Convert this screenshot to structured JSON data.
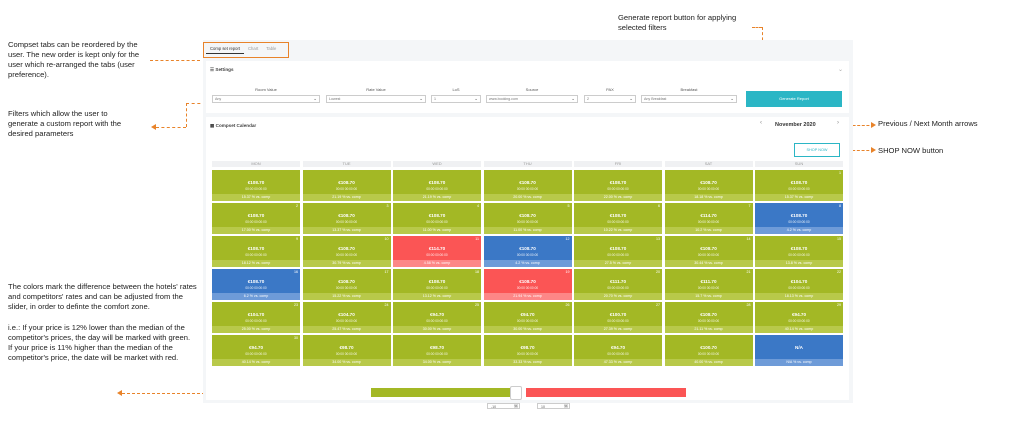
{
  "annotations": {
    "tabs": "Compset tabs can be reordered by the user. The new order is kept only for the user which re-arranged the tabs (user preference).",
    "filters": "Filters which allow the user to generate a custom report with the desired parameters",
    "colors": "The colors mark the difference between the hotels' rates and competitors' rates and can be adjusted from the slider, in order to definte the comfort zone.",
    "example": "i.e.: If your price is 12% lower than the median of the competitor's prices, the day will be marked with green. If your price is 11% higher than the median of the competitor's price, the date will be market with red.",
    "generate": "Generate report button for applying selected filters",
    "month_arrows": "Previous / Next Month arrows",
    "shop_now": "SHOP NOW button"
  },
  "tabs": [
    "Comp set report",
    "Chart",
    "Table"
  ],
  "settings": {
    "title": "Settings",
    "filters": [
      {
        "label": "Room Value",
        "value": "Any"
      },
      {
        "label": "Rate Value",
        "value": "Lowest"
      },
      {
        "label": "LoS",
        "value": "1"
      },
      {
        "label": "Source",
        "value": "www.booking.com"
      },
      {
        "label": "PAX",
        "value": "2"
      },
      {
        "label": "Breakfast",
        "value": "Any Breakfast"
      }
    ],
    "generate_label": "Generate Report"
  },
  "calendar": {
    "title": "Compset Calendar",
    "month": "November 2020",
    "prev": "‹",
    "next": "›",
    "shop_now": "SHOP NOW",
    "days": [
      "MON",
      "TUE",
      "WED",
      "THU",
      "FRI",
      "SAT",
      "SUN"
    ],
    "cells": [
      {
        "day": "",
        "price": "€108.70",
        "sub": "00:00 00:00:00",
        "pct": "15.37 % vs. comp",
        "color": "#a3b825"
      },
      {
        "day": "",
        "price": "€108.70",
        "sub": "00:00 00:00:00",
        "pct": "21.19 % vs. comp",
        "color": "#a3b825"
      },
      {
        "day": "",
        "price": "€108.70",
        "sub": "00:00 00:00:00",
        "pct": "21.19 % vs. comp",
        "color": "#a3b825"
      },
      {
        "day": "",
        "price": "€108.70",
        "sub": "00:00 00:00:00",
        "pct": "20.00 % vs. comp",
        "color": "#a3b825"
      },
      {
        "day": "",
        "price": "€108.70",
        "sub": "00:00 00:00:00",
        "pct": "22.00 % vs. comp",
        "color": "#a3b825"
      },
      {
        "day": "",
        "price": "€108.70",
        "sub": "00:00 00:00:00",
        "pct": "18.18 % vs. comp",
        "color": "#a3b825"
      },
      {
        "day": "1",
        "price": "€108.70",
        "sub": "00:00 00:00:00",
        "pct": "15.37 % vs. comp",
        "color": "#a3b825"
      },
      {
        "day": "2",
        "price": "€108.70",
        "sub": "00:00 00:00:00",
        "pct": "17.00 % vs. comp",
        "color": "#a3b825"
      },
      {
        "day": "3",
        "price": "€108.70",
        "sub": "00:00 00:00:00",
        "pct": "13.37 % vs. comp",
        "color": "#a3b825"
      },
      {
        "day": "4",
        "price": "€108.70",
        "sub": "00:00 00:00:00",
        "pct": "11.00 % vs. comp",
        "color": "#a3b825"
      },
      {
        "day": "5",
        "price": "€108.70",
        "sub": "00:00 00:00:00",
        "pct": "11.00 % vs. comp",
        "color": "#a3b825"
      },
      {
        "day": "6",
        "price": "€108.70",
        "sub": "00:00 00:00:00",
        "pct": "10.22 % vs. comp",
        "color": "#a3b825"
      },
      {
        "day": "7",
        "price": "€114.70",
        "sub": "00:00 00:00:00",
        "pct": "10.2 % vs. comp",
        "color": "#a3b825"
      },
      {
        "day": "8",
        "price": "€108.70",
        "sub": "00:00 00:00:00",
        "pct": "4.2 % vs. comp",
        "color": "#3b78c6"
      },
      {
        "day": "9",
        "price": "€108.70",
        "sub": "00:00 00:00:00",
        "pct": "18.12 % vs. comp",
        "color": "#a3b825"
      },
      {
        "day": "10",
        "price": "€108.70",
        "sub": "00:00 00:00:00",
        "pct": "30.79 % vs. comp",
        "color": "#a3b825"
      },
      {
        "day": "11",
        "price": "€114.70",
        "sub": "00:00 00:00:00",
        "pct": "4.58 % vs. comp",
        "color": "#fb5555"
      },
      {
        "day": "12",
        "price": "€108.70",
        "sub": "00:00 00:00:00",
        "pct": "4.2 % vs. comp",
        "color": "#3b78c6"
      },
      {
        "day": "13",
        "price": "€108.70",
        "sub": "00:00 00:00:00",
        "pct": "27.5 % vs. comp",
        "color": "#a3b825"
      },
      {
        "day": "14",
        "price": "€108.70",
        "sub": "00:00 00:00:00",
        "pct": "30.44 % vs. comp",
        "color": "#a3b825"
      },
      {
        "day": "15",
        "price": "€108.70",
        "sub": "00:00 00:00:00",
        "pct": "13.8 % vs. comp",
        "color": "#a3b825"
      },
      {
        "day": "16",
        "price": "€108.70",
        "sub": "00:00 00:00:00",
        "pct": "6.2 % vs. comp",
        "color": "#3b78c6"
      },
      {
        "day": "17",
        "price": "€108.70",
        "sub": "00:00 00:00:00",
        "pct": "15.22 % vs. comp",
        "color": "#a3b825"
      },
      {
        "day": "18",
        "price": "€108.70",
        "sub": "00:00 00:00:00",
        "pct": "13.12 % vs. comp",
        "color": "#a3b825"
      },
      {
        "day": "19",
        "price": "€108.70",
        "sub": "00:00 00:00:00",
        "pct": "21.94 % vs. comp",
        "color": "#fb5555"
      },
      {
        "day": "20",
        "price": "€111.70",
        "sub": "00:00 00:00:00",
        "pct": "20.70 % vs. comp",
        "color": "#a3b825"
      },
      {
        "day": "21",
        "price": "€111.70",
        "sub": "00:00 00:00:00",
        "pct": "15.7 % vs. comp",
        "color": "#a3b825"
      },
      {
        "day": "22",
        "price": "€104.70",
        "sub": "00:00 00:00:00",
        "pct": "18.13 % vs. comp",
        "color": "#a3b825"
      },
      {
        "day": "23",
        "price": "€104.70",
        "sub": "00:00 00:00:00",
        "pct": "25.00 % vs. comp",
        "color": "#a3b825"
      },
      {
        "day": "24",
        "price": "€104.70",
        "sub": "00:00 00:00:00",
        "pct": "25.47 % vs. comp",
        "color": "#a3b825"
      },
      {
        "day": "25",
        "price": "€94.70",
        "sub": "00:00 00:00:00",
        "pct": "30.00 % vs. comp",
        "color": "#a3b825"
      },
      {
        "day": "26",
        "price": "€94.70",
        "sub": "00:00 00:00:00",
        "pct": "30.00 % vs. comp",
        "color": "#a3b825"
      },
      {
        "day": "27",
        "price": "€100.70",
        "sub": "00:00 00:00:00",
        "pct": "27.39 % vs. comp",
        "color": "#a3b825"
      },
      {
        "day": "28",
        "price": "€108.70",
        "sub": "00:00 00:00:00",
        "pct": "21.11 % vs. comp",
        "color": "#a3b825"
      },
      {
        "day": "29",
        "price": "€94.70",
        "sub": "00:00 00:00:00",
        "pct": "40.14 % vs. comp",
        "color": "#a3b825"
      },
      {
        "day": "30",
        "price": "€94.70",
        "sub": "00:00 00:00:00",
        "pct": "40.14 % vs. comp",
        "color": "#a3b825"
      },
      {
        "day": "",
        "price": "€98.70",
        "sub": "00:00 00:00:00",
        "pct": "34.00 % vs. comp",
        "color": "#a3b825"
      },
      {
        "day": "",
        "price": "€98.70",
        "sub": "00:00 00:00:00",
        "pct": "34.00 % vs. comp",
        "color": "#a3b825"
      },
      {
        "day": "",
        "price": "€98.70",
        "sub": "00:00 00:00:00",
        "pct": "33.33 % vs. comp",
        "color": "#a3b825"
      },
      {
        "day": "",
        "price": "€94.70",
        "sub": "00:00 00:00:00",
        "pct": "47.33 % vs. comp",
        "color": "#a3b825"
      },
      {
        "day": "",
        "price": "€100.70",
        "sub": "00:00 00:00:00",
        "pct": "40.00 % vs. comp",
        "color": "#a3b825"
      },
      {
        "day": "",
        "price": "N/A",
        "sub": "",
        "pct": "N/A % vs. comp",
        "color": "#3b78c6"
      }
    ]
  },
  "slider": {
    "low_value": "-10",
    "high_value": "10",
    "unit": "%",
    "low_color": "#a3b825",
    "high_color": "#fb5555"
  }
}
